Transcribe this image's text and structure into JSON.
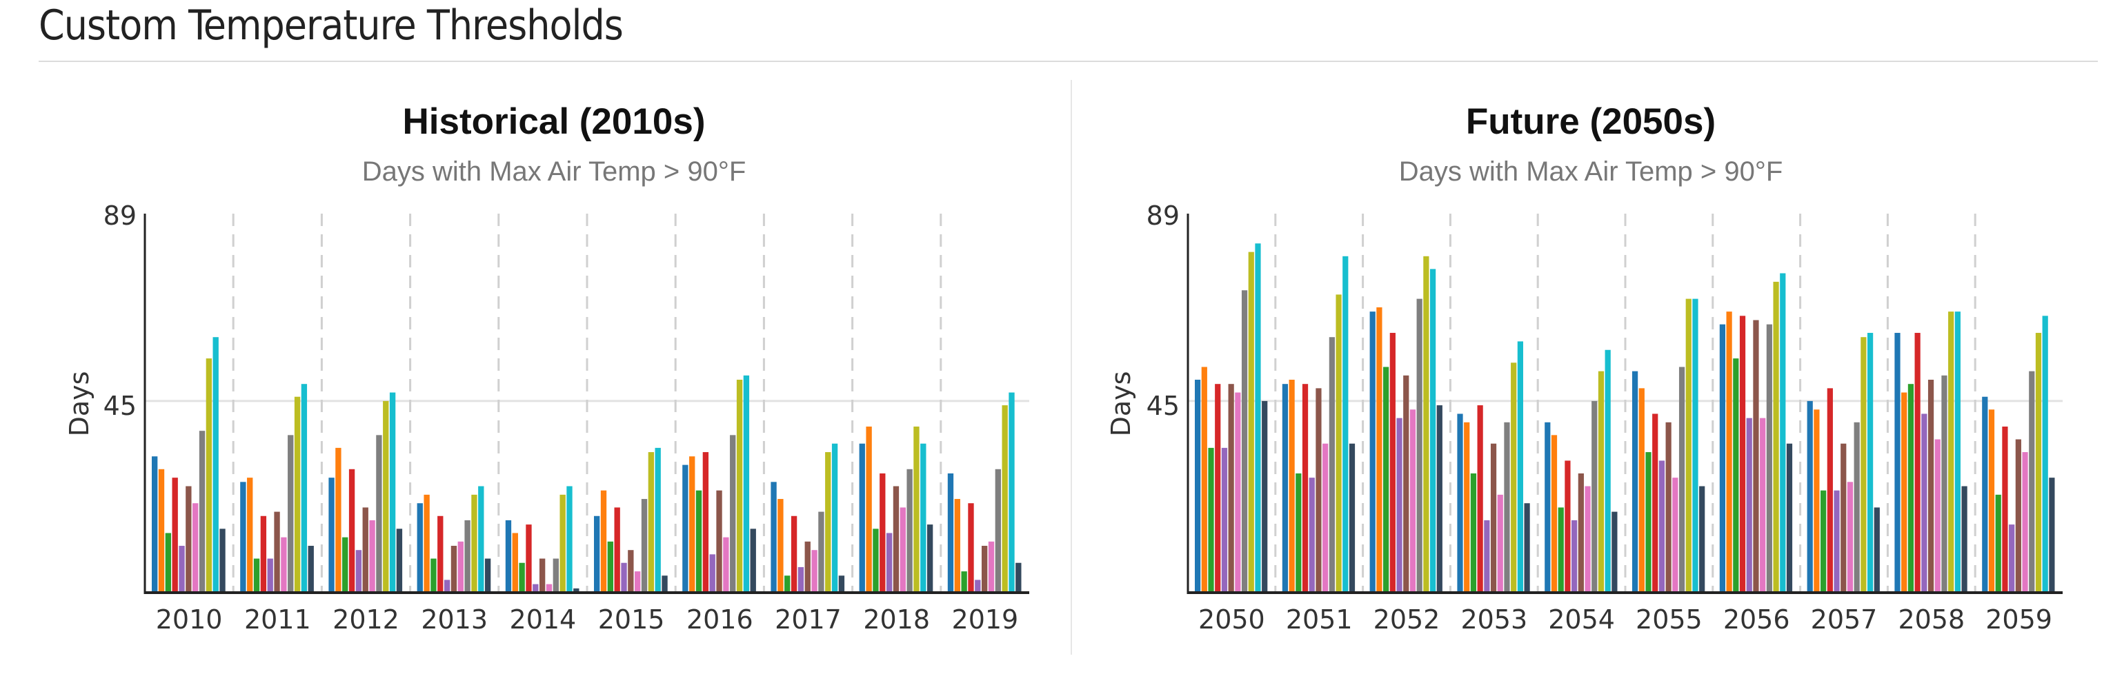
{
  "page": {
    "title": "Custom Temperature Thresholds"
  },
  "palette": [
    "#1f77b4",
    "#ff7f0e",
    "#2ca02c",
    "#d62728",
    "#9467bd",
    "#8c564b",
    "#e377c2",
    "#7f7f7f",
    "#bcbd22",
    "#17becf",
    "#34495e"
  ],
  "chart_data": [
    {
      "type": "bar",
      "title": "Historical (2010s)",
      "subtitle": "Days with Max Air Temp > 90°F",
      "xlabel": "",
      "ylabel": "Days",
      "ylim": [
        0,
        89
      ],
      "yticks": [
        "45",
        "89"
      ],
      "grid": "vertical dashed separators between years, horizontal line at 45",
      "categories": [
        "2010",
        "2011",
        "2012",
        "2013",
        "2014",
        "2015",
        "2016",
        "2017",
        "2018",
        "2019"
      ],
      "series": [
        {
          "values": [
            32,
            26,
            27,
            21,
            17,
            18,
            30,
            26,
            35,
            28
          ]
        },
        {
          "values": [
            29,
            27,
            34,
            23,
            14,
            24,
            32,
            22,
            39,
            22
          ]
        },
        {
          "values": [
            14,
            8,
            13,
            8,
            7,
            12,
            24,
            4,
            15,
            5
          ]
        },
        {
          "values": [
            27,
            18,
            29,
            18,
            16,
            20,
            33,
            18,
            28,
            21
          ]
        },
        {
          "values": [
            11,
            8,
            10,
            3,
            2,
            7,
            9,
            6,
            14,
            3
          ]
        },
        {
          "values": [
            25,
            19,
            20,
            11,
            8,
            10,
            24,
            12,
            25,
            11
          ]
        },
        {
          "values": [
            21,
            13,
            17,
            12,
            2,
            5,
            13,
            10,
            20,
            12
          ]
        },
        {
          "values": [
            38,
            37,
            37,
            17,
            8,
            22,
            37,
            19,
            29,
            29
          ]
        },
        {
          "values": [
            55,
            46,
            45,
            23,
            23,
            33,
            50,
            33,
            39,
            44
          ]
        },
        {
          "values": [
            60,
            49,
            47,
            25,
            25,
            34,
            51,
            35,
            35,
            47
          ]
        },
        {
          "values": [
            15,
            11,
            15,
            8,
            1,
            4,
            15,
            4,
            16,
            7
          ]
        }
      ]
    },
    {
      "type": "bar",
      "title": "Future (2050s)",
      "subtitle": "Days with Max Air Temp > 90°F",
      "xlabel": "",
      "ylabel": "Days",
      "ylim": [
        0,
        89
      ],
      "yticks": [
        "45",
        "89"
      ],
      "grid": "vertical dashed separators between years, horizontal line at 45",
      "categories": [
        "2050",
        "2051",
        "2052",
        "2053",
        "2054",
        "2055",
        "2056",
        "2057",
        "2058",
        "2059"
      ],
      "series": [
        {
          "values": [
            50,
            49,
            66,
            42,
            40,
            52,
            63,
            45,
            61,
            46
          ]
        },
        {
          "values": [
            53,
            50,
            67,
            40,
            37,
            48,
            66,
            43,
            47,
            43
          ]
        },
        {
          "values": [
            34,
            28,
            53,
            28,
            20,
            33,
            55,
            24,
            49,
            23
          ]
        },
        {
          "values": [
            49,
            49,
            61,
            44,
            31,
            42,
            65,
            48,
            61,
            39
          ]
        },
        {
          "values": [
            34,
            27,
            41,
            17,
            17,
            31,
            41,
            24,
            42,
            16
          ]
        },
        {
          "values": [
            49,
            48,
            51,
            35,
            28,
            40,
            64,
            35,
            50,
            36
          ]
        },
        {
          "values": [
            47,
            35,
            43,
            23,
            25,
            27,
            41,
            26,
            36,
            33
          ]
        },
        {
          "values": [
            71,
            60,
            69,
            40,
            45,
            53,
            63,
            40,
            51,
            52
          ]
        },
        {
          "values": [
            80,
            70,
            79,
            54,
            52,
            69,
            73,
            60,
            66,
            61
          ]
        },
        {
          "values": [
            82,
            79,
            76,
            59,
            57,
            69,
            75,
            61,
            66,
            65
          ]
        },
        {
          "values": [
            45,
            35,
            44,
            21,
            19,
            25,
            35,
            20,
            25,
            27
          ]
        }
      ]
    }
  ]
}
